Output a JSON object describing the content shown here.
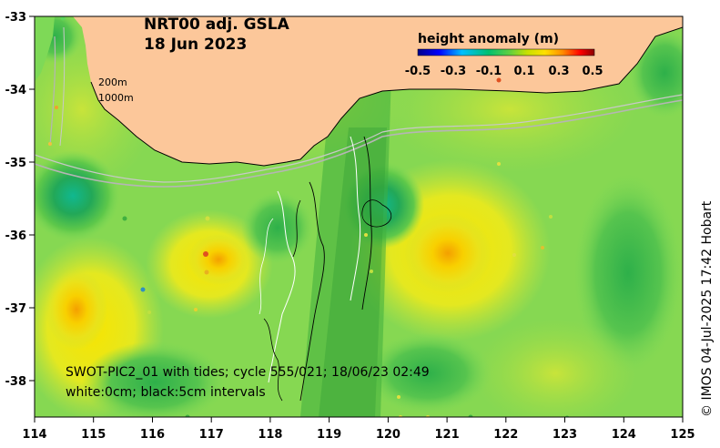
{
  "title": {
    "line1": "NRT00 adj. GSLA",
    "line2": "18 Jun 2023"
  },
  "colorbar": {
    "title": "height anomaly (m)",
    "ticks": [
      "-0.5",
      "-0.3",
      "-0.1",
      "0.1",
      "0.3",
      "0.5"
    ],
    "colors": [
      "#00008b",
      "#0000ff",
      "#00bfff",
      "#00c070",
      "#9be000",
      "#ffe000",
      "#ff8c00",
      "#ff0000",
      "#8b0000"
    ]
  },
  "contours": {
    "label_200": "200m",
    "label_1000": "1000m"
  },
  "info": {
    "line1": "SWOT-PIC2_01 with tides; cycle 555/021; 18/06/23 02:49",
    "line2": "white:0cm; black:5cm intervals"
  },
  "credit": "© IMOS 04-Jul-2025 17:42 Hobart",
  "axes": {
    "x_ticks": [
      "114",
      "115",
      "116",
      "117",
      "118",
      "119",
      "120",
      "121",
      "122",
      "123",
      "124",
      "125"
    ],
    "y_ticks": [
      "-33",
      "-34",
      "-35",
      "-36",
      "-37",
      "-38"
    ]
  },
  "colors": {
    "land": "#fcc79a",
    "background": "#7ed957"
  }
}
